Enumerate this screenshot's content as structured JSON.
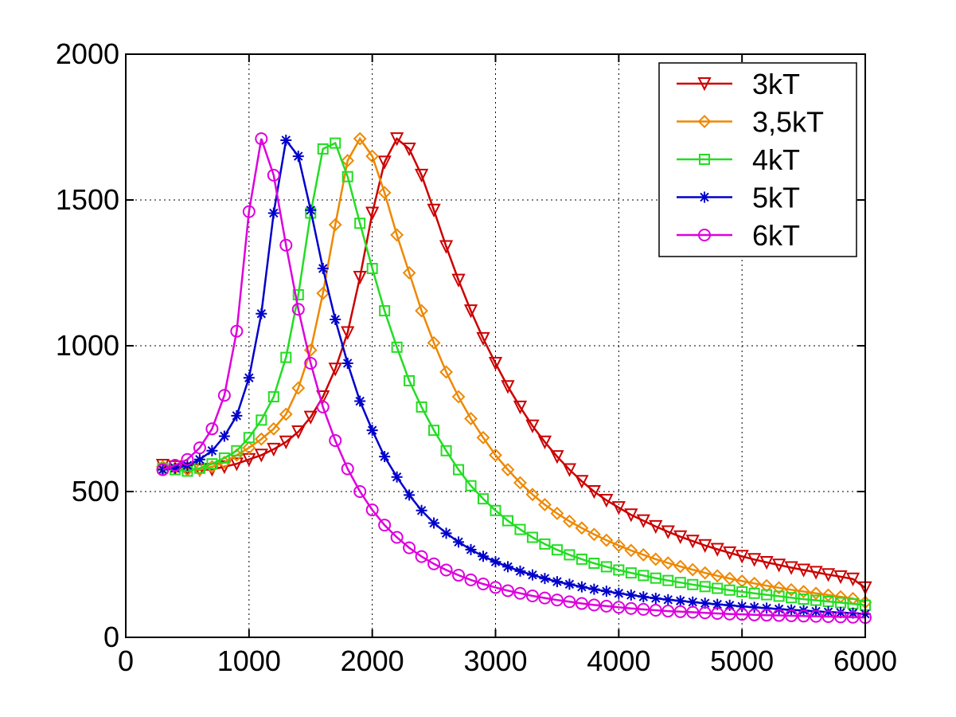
{
  "chart_data": {
    "type": "line",
    "title": "",
    "xlabel": "",
    "ylabel": "",
    "xlim": [
      0,
      6000
    ],
    "ylim": [
      0,
      2000
    ],
    "xticks": [
      "0",
      "1000",
      "2000",
      "3000",
      "4000",
      "5000",
      "6000"
    ],
    "yticks": [
      "0",
      "500",
      "1000",
      "1500",
      "2000"
    ],
    "grid": true,
    "legend_position": "top-right",
    "series": [
      {
        "name": "3kT",
        "color": "#cc0000",
        "marker": "triangle-down",
        "x": [
          300,
          400,
          500,
          600,
          700,
          800,
          900,
          1000,
          1100,
          1200,
          1300,
          1400,
          1500,
          1600,
          1700,
          1800,
          1900,
          2000,
          2100,
          2200,
          2300,
          2400,
          2500,
          2600,
          2700,
          2800,
          2900,
          3000,
          3100,
          3200,
          3300,
          3400,
          3500,
          3600,
          3700,
          3800,
          3900,
          4000,
          4100,
          4200,
          4300,
          4400,
          4500,
          4600,
          4700,
          4800,
          4900,
          5000,
          5100,
          5200,
          5300,
          5400,
          5500,
          5600,
          5700,
          5800,
          5900,
          6000
        ],
        "y": [
          590,
          585,
          578,
          574,
          576,
          585,
          595,
          610,
          625,
          645,
          670,
          705,
          755,
          825,
          920,
          1045,
          1235,
          1455,
          1630,
          1710,
          1675,
          1585,
          1465,
          1340,
          1225,
          1120,
          1025,
          940,
          860,
          790,
          725,
          670,
          620,
          575,
          535,
          500,
          470,
          445,
          420,
          400,
          380,
          362,
          345,
          330,
          315,
          302,
          290,
          278,
          267,
          257,
          248,
          239,
          231,
          223,
          215,
          208,
          200,
          170
        ]
      },
      {
        "name": "3,5kT",
        "color": "#ee8800",
        "marker": "diamond",
        "x": [
          300,
          400,
          500,
          600,
          700,
          800,
          900,
          1000,
          1100,
          1200,
          1300,
          1400,
          1500,
          1600,
          1700,
          1800,
          1900,
          2000,
          2100,
          2200,
          2300,
          2400,
          2500,
          2600,
          2700,
          2800,
          2900,
          3000,
          3100,
          3200,
          3300,
          3400,
          3500,
          3600,
          3700,
          3800,
          3900,
          4000,
          4100,
          4200,
          4300,
          4400,
          4500,
          4600,
          4700,
          4800,
          4900,
          5000,
          5100,
          5200,
          5300,
          5400,
          5500,
          5600,
          5700,
          5800,
          5900,
          6000
        ],
        "y": [
          585,
          580,
          575,
          575,
          585,
          600,
          625,
          650,
          680,
          715,
          765,
          855,
          985,
          1180,
          1415,
          1635,
          1710,
          1650,
          1525,
          1380,
          1250,
          1120,
          1010,
          910,
          825,
          750,
          685,
          625,
          575,
          530,
          490,
          455,
          425,
          398,
          375,
          353,
          333,
          315,
          298,
          283,
          268,
          255,
          243,
          232,
          221,
          211,
          202,
          193,
          185,
          177,
          170,
          163,
          157,
          151,
          145,
          139,
          133,
          120
        ]
      },
      {
        "name": "4kT",
        "color": "#22dd22",
        "marker": "square",
        "x": [
          300,
          400,
          500,
          600,
          700,
          800,
          900,
          1000,
          1100,
          1200,
          1300,
          1400,
          1500,
          1600,
          1700,
          1800,
          1900,
          2000,
          2100,
          2200,
          2300,
          2400,
          2500,
          2600,
          2700,
          2800,
          2900,
          3000,
          3100,
          3200,
          3300,
          3400,
          3500,
          3600,
          3700,
          3800,
          3900,
          4000,
          4100,
          4200,
          4300,
          4400,
          4500,
          4600,
          4700,
          4800,
          4900,
          5000,
          5100,
          5200,
          5300,
          5400,
          5500,
          5600,
          5700,
          5800,
          5900,
          6000
        ],
        "y": [
          580,
          575,
          570,
          580,
          595,
          615,
          640,
          685,
          745,
          825,
          960,
          1175,
          1455,
          1675,
          1695,
          1580,
          1420,
          1265,
          1120,
          995,
          880,
          790,
          710,
          640,
          575,
          520,
          475,
          435,
          400,
          370,
          343,
          320,
          300,
          283,
          268,
          254,
          242,
          231,
          221,
          212,
          203,
          195,
          188,
          181,
          174,
          168,
          162,
          156,
          151,
          146,
          141,
          136,
          131,
          127,
          123,
          119,
          115,
          110
        ]
      },
      {
        "name": "5kT",
        "color": "#0000cc",
        "marker": "asterisk",
        "x": [
          300,
          400,
          500,
          600,
          700,
          800,
          900,
          1000,
          1100,
          1200,
          1300,
          1400,
          1500,
          1600,
          1700,
          1800,
          1900,
          2000,
          2100,
          2200,
          2300,
          2400,
          2500,
          2600,
          2700,
          2800,
          2900,
          3000,
          3100,
          3200,
          3300,
          3400,
          3500,
          3600,
          3700,
          3800,
          3900,
          4000,
          4100,
          4200,
          4300,
          4400,
          4500,
          4600,
          4700,
          4800,
          4900,
          5000,
          5100,
          5200,
          5300,
          5400,
          5500,
          5600,
          5700,
          5800,
          5900,
          6000
        ],
        "y": [
          575,
          580,
          590,
          610,
          640,
          690,
          760,
          890,
          1110,
          1455,
          1705,
          1650,
          1465,
          1265,
          1090,
          940,
          810,
          710,
          620,
          550,
          488,
          435,
          392,
          357,
          327,
          301,
          278,
          259,
          242,
          227,
          214,
          202,
          191,
          182,
          173,
          165,
          158,
          151,
          145,
          139,
          134,
          129,
          125,
          121,
          117,
          113,
          110,
          106,
          103,
          100,
          97,
          94,
          92,
          89,
          87,
          85,
          83,
          80
        ]
      },
      {
        "name": "6kT",
        "color": "#dd00dd",
        "marker": "circle",
        "x": [
          300,
          400,
          500,
          600,
          700,
          800,
          900,
          1000,
          1100,
          1200,
          1300,
          1400,
          1500,
          1600,
          1700,
          1800,
          1900,
          2000,
          2100,
          2200,
          2300,
          2400,
          2500,
          2600,
          2700,
          2800,
          2900,
          3000,
          3100,
          3200,
          3300,
          3400,
          3500,
          3600,
          3700,
          3800,
          3900,
          4000,
          4100,
          4200,
          4300,
          4400,
          4500,
          4600,
          4700,
          4800,
          4900,
          5000,
          5100,
          5200,
          5300,
          5400,
          5500,
          5600,
          5700,
          5800,
          5900,
          6000
        ],
        "y": [
          575,
          590,
          610,
          650,
          715,
          830,
          1050,
          1460,
          1710,
          1585,
          1345,
          1125,
          940,
          790,
          675,
          578,
          500,
          437,
          385,
          343,
          307,
          277,
          252,
          231,
          213,
          197,
          183,
          171,
          160,
          151,
          142,
          135,
          128,
          122,
          116,
          111,
          107,
          103,
          99,
          96,
          93,
          90,
          88,
          86,
          84,
          82,
          80,
          79,
          77,
          76,
          75,
          74,
          73,
          72,
          71,
          70,
          69,
          68
        ]
      }
    ]
  }
}
